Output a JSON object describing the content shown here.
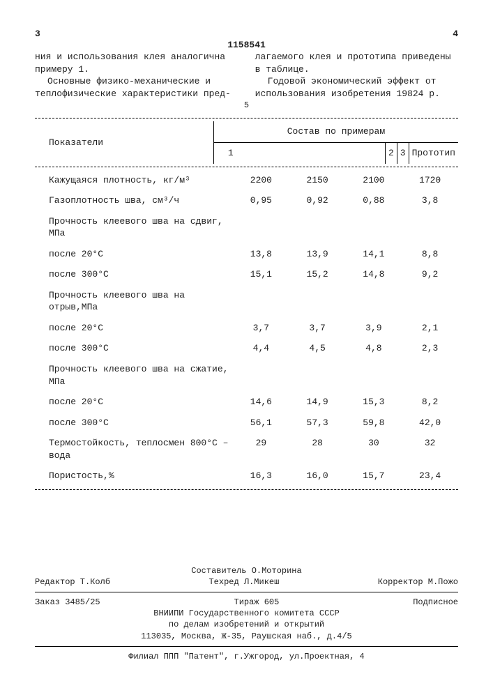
{
  "header": {
    "page_left": "3",
    "page_right": "4",
    "docnum": "1158541"
  },
  "intro": {
    "left_p1": "ния и использования клея аналогична примеру 1.",
    "left_p2": "Основные физико-механические и теплофизические характеристики пред-",
    "right_p1": "лагаемого клея и прототипа приведены в таблице.",
    "right_p2": "Годовой экономический эффект от использования изобретения 19824 р.",
    "small5": "5"
  },
  "table": {
    "head_indicator": "Показатели",
    "head_group": "Состав по примерам",
    "cols": [
      "1",
      "2",
      "3",
      "Прототип"
    ],
    "rows": [
      {
        "label": "Кажущаяся плотность, кг/м³",
        "v": [
          "2200",
          "2150",
          "2100",
          "1720"
        ],
        "cls": "row-label"
      },
      {
        "label": "Газоплотность шва, см³/ч",
        "v": [
          "0,95",
          "0,92",
          "0,88",
          "3,8"
        ],
        "cls": "row-label"
      },
      {
        "label": "Прочность клеевого шва на сдвиг, МПа",
        "v": [
          "",
          "",
          "",
          ""
        ],
        "cls": "row-label"
      },
      {
        "label": "после 20°С",
        "v": [
          "13,8",
          "13,9",
          "14,1",
          "8,8"
        ],
        "cls": "row-sub"
      },
      {
        "label": "после 300°С",
        "v": [
          "15,1",
          "15,2",
          "14,8",
          "9,2"
        ],
        "cls": "row-sub"
      },
      {
        "label": "Прочность клеевого шва на отрыв,МПа",
        "v": [
          "",
          "",
          "",
          ""
        ],
        "cls": "row-label"
      },
      {
        "label": "после 20°С",
        "v": [
          "3,7",
          "3,7",
          "3,9",
          "2,1"
        ],
        "cls": "row-sub"
      },
      {
        "label": "после 300°С",
        "v": [
          "4,4",
          "4,5",
          "4,8",
          "2,3"
        ],
        "cls": "row-sub"
      },
      {
        "label": "Прочность клеевого шва на сжатие, МПа",
        "v": [
          "",
          "",
          "",
          ""
        ],
        "cls": "row-label"
      },
      {
        "label": "после 20°С",
        "v": [
          "14,6",
          "14,9",
          "15,3",
          "8,2"
        ],
        "cls": "row-sub"
      },
      {
        "label": "после 300°С",
        "v": [
          "56,1",
          "57,3",
          "59,8",
          "42,0"
        ],
        "cls": "row-sub"
      },
      {
        "label": "Термостойкость, теплосмен 800°С – вода",
        "v": [
          "29",
          "28",
          "30",
          "32"
        ],
        "cls": "row-label"
      },
      {
        "label": "Пористость,%",
        "v": [
          "16,3",
          "16,0",
          "15,7",
          "23,4"
        ],
        "cls": "row-label"
      }
    ]
  },
  "footer": {
    "compiler": "Составитель О.Моторина",
    "editor": "Редактор Т.Колб",
    "techred": "Техред Л.Микеш",
    "corrector": "Корректор М.Пожо",
    "order": "Заказ 3485/25",
    "tirage": "Тираж 605",
    "sub": "Подписное",
    "org1": "ВНИИПИ Государственного комитета СССР",
    "org2": "по делам изобретений и открытий",
    "addr": "113035, Москва, Ж-35, Раушская наб., д.4/5",
    "filial": "Филиал ППП \"Патент\", г.Ужгород, ул.Проектная, 4"
  }
}
